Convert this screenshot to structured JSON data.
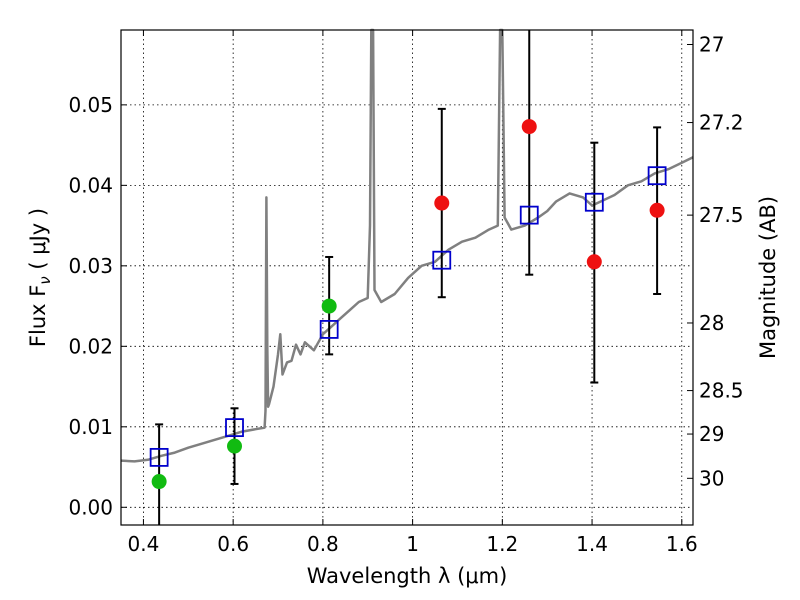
{
  "chart_data": {
    "type": "scatter",
    "xlabel": "Wavelength  λ (μm)",
    "ylabel_prefix": "Flux  F",
    "ylabel_sub": "ν",
    "ylabel_suffix": "  ( μJy )",
    "y2label": "Magnitude (AB)",
    "xlim": [
      0.35,
      1.625
    ],
    "ylim": [
      -0.0022,
      0.0593
    ],
    "grid": true,
    "x_ticks": [
      {
        "value": 0.4,
        "label": "0.4"
      },
      {
        "value": 0.6,
        "label": "0.6"
      },
      {
        "value": 0.8,
        "label": "0.8"
      },
      {
        "value": 1.0,
        "label": "1"
      },
      {
        "value": 1.2,
        "label": "1.2"
      },
      {
        "value": 1.4,
        "label": "1.4"
      },
      {
        "value": 1.6,
        "label": "1.6"
      }
    ],
    "y_ticks": [
      {
        "value": 0.0,
        "label": "0.00"
      },
      {
        "value": 0.01,
        "label": "0.01"
      },
      {
        "value": 0.02,
        "label": "0.02"
      },
      {
        "value": 0.03,
        "label": "0.03"
      },
      {
        "value": 0.04,
        "label": "0.04"
      },
      {
        "value": 0.05,
        "label": "0.05"
      }
    ],
    "y2_ticks": [
      {
        "flux": 0.0575,
        "label": "27"
      },
      {
        "flux": 0.0478,
        "label": "27.2"
      },
      {
        "flux": 0.0363,
        "label": "27.5"
      },
      {
        "flux": 0.0229,
        "label": "28"
      },
      {
        "flux": 0.0145,
        "label": "28.5"
      },
      {
        "flux": 0.0091,
        "label": "29"
      },
      {
        "flux": 0.0036,
        "label": "30"
      }
    ],
    "model_spectrum": [
      [
        0.35,
        0.0058
      ],
      [
        0.38,
        0.0057
      ],
      [
        0.41,
        0.0059
      ],
      [
        0.44,
        0.0064
      ],
      [
        0.47,
        0.0068
      ],
      [
        0.5,
        0.0074
      ],
      [
        0.53,
        0.0079
      ],
      [
        0.56,
        0.0084
      ],
      [
        0.59,
        0.0089
      ],
      [
        0.62,
        0.0094
      ],
      [
        0.65,
        0.0097
      ],
      [
        0.67,
        0.0099
      ],
      [
        0.672,
        0.012
      ],
      [
        0.674,
        0.0385
      ],
      [
        0.676,
        0.02
      ],
      [
        0.678,
        0.0125
      ],
      [
        0.68,
        0.0128
      ],
      [
        0.69,
        0.015
      ],
      [
        0.7,
        0.019
      ],
      [
        0.705,
        0.0215
      ],
      [
        0.71,
        0.0165
      ],
      [
        0.72,
        0.018
      ],
      [
        0.73,
        0.0182
      ],
      [
        0.74,
        0.0202
      ],
      [
        0.75,
        0.019
      ],
      [
        0.76,
        0.0205
      ],
      [
        0.78,
        0.0195
      ],
      [
        0.8,
        0.0215
      ],
      [
        0.82,
        0.0225
      ],
      [
        0.84,
        0.0235
      ],
      [
        0.86,
        0.0245
      ],
      [
        0.88,
        0.0255
      ],
      [
        0.9,
        0.026
      ],
      [
        0.905,
        0.035
      ],
      [
        0.908,
        0.062
      ],
      [
        0.912,
        0.062
      ],
      [
        0.915,
        0.027
      ],
      [
        0.93,
        0.0255
      ],
      [
        0.96,
        0.0265
      ],
      [
        0.99,
        0.0285
      ],
      [
        1.02,
        0.03
      ],
      [
        1.05,
        0.0305
      ],
      [
        1.08,
        0.032
      ],
      [
        1.11,
        0.033
      ],
      [
        1.14,
        0.0335
      ],
      [
        1.17,
        0.0345
      ],
      [
        1.19,
        0.035
      ],
      [
        1.195,
        0.062
      ],
      [
        1.2,
        0.062
      ],
      [
        1.205,
        0.036
      ],
      [
        1.22,
        0.0345
      ],
      [
        1.25,
        0.035
      ],
      [
        1.28,
        0.036
      ],
      [
        1.3,
        0.0368
      ],
      [
        1.32,
        0.038
      ],
      [
        1.35,
        0.039
      ],
      [
        1.38,
        0.0385
      ],
      [
        1.4,
        0.0375
      ],
      [
        1.42,
        0.038
      ],
      [
        1.45,
        0.0388
      ],
      [
        1.48,
        0.04
      ],
      [
        1.51,
        0.0405
      ],
      [
        1.54,
        0.0415
      ],
      [
        1.57,
        0.042
      ],
      [
        1.6,
        0.0428
      ],
      [
        1.625,
        0.0435
      ]
    ],
    "series": [
      {
        "marker": "open-square",
        "color": "#0000cc",
        "points": [
          [
            0.435,
            0.0062
          ],
          [
            0.603,
            0.0099
          ],
          [
            0.814,
            0.0221
          ],
          [
            1.065,
            0.0307
          ],
          [
            1.26,
            0.0363
          ],
          [
            1.405,
            0.0379
          ],
          [
            1.545,
            0.0412
          ]
        ]
      },
      {
        "marker": "filled-circle",
        "color": "#11bb11",
        "points": [
          [
            0.435,
            0.0032
          ],
          [
            0.603,
            0.0076
          ],
          [
            0.814,
            0.025
          ]
        ]
      },
      {
        "marker": "filled-circle",
        "color": "#ee1111",
        "points": [
          [
            1.065,
            0.0378
          ],
          [
            1.26,
            0.0473
          ],
          [
            1.405,
            0.0305
          ],
          [
            1.545,
            0.0369
          ]
        ]
      }
    ],
    "error_bars": [
      {
        "x": 0.435,
        "lo": -0.0022,
        "hi": 0.0103
      },
      {
        "x": 0.603,
        "lo": 0.0029,
        "hi": 0.0123
      },
      {
        "x": 0.814,
        "lo": 0.019,
        "hi": 0.0311
      },
      {
        "x": 1.065,
        "lo": 0.0261,
        "hi": 0.0495
      },
      {
        "x": 1.26,
        "lo": 0.0289,
        "hi": 0.0593
      },
      {
        "x": 1.405,
        "lo": 0.0155,
        "hi": 0.0453
      },
      {
        "x": 1.545,
        "lo": 0.0265,
        "hi": 0.0472
      }
    ]
  }
}
